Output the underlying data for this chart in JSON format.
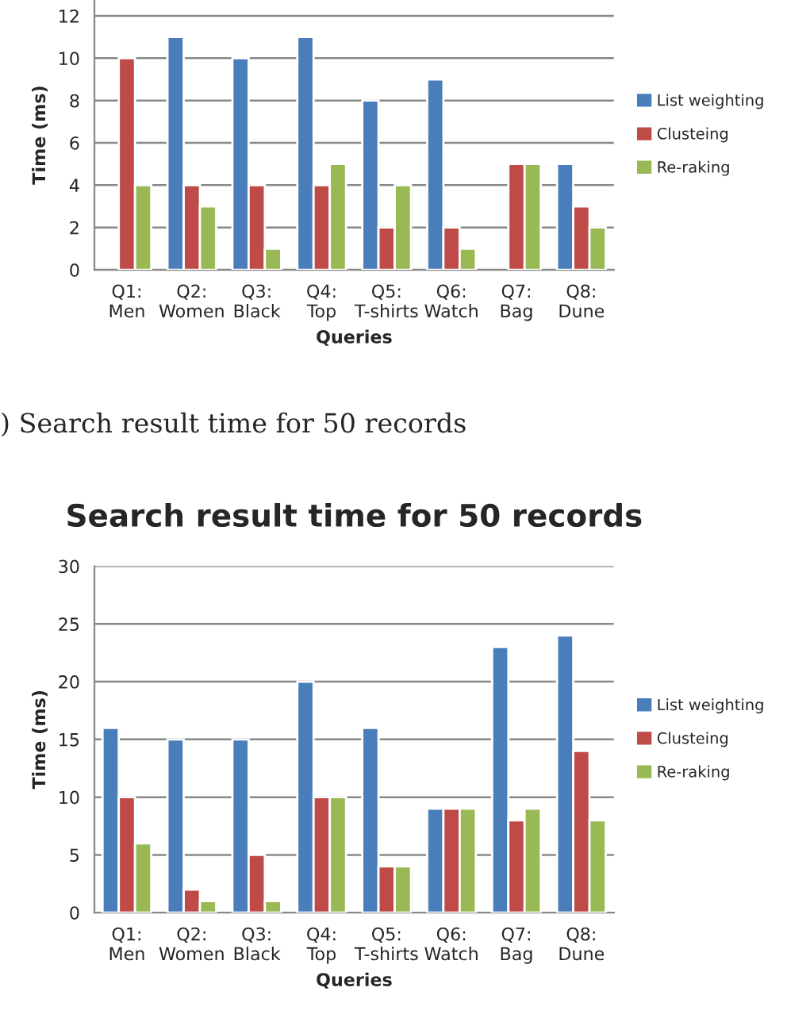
{
  "chart_data": [
    {
      "type": "bar",
      "xlabel": "Queries",
      "ylabel": "Time (ms)",
      "categories": [
        "Q1:\nMen",
        "Q2:\nWomen",
        "Q3:\nBlack",
        "Q4:\nTop",
        "Q5:\nT-shirts",
        "Q6:\nWatch",
        "Q7:\nBag",
        "Q8:\nDune"
      ],
      "series": [
        {
          "name": "List weighting",
          "color": "#4a7ebb",
          "values": [
            null,
            11,
            10,
            11,
            8,
            9,
            null,
            5
          ]
        },
        {
          "name": "Clusteing",
          "color": "#be4b48",
          "values": [
            10,
            4,
            4,
            4,
            2,
            2,
            5,
            3
          ]
        },
        {
          "name": "Re-raking",
          "color": "#98b954",
          "values": [
            4,
            3,
            1,
            5,
            4,
            1,
            5,
            2
          ]
        }
      ],
      "ylim": [
        0,
        12.75
      ],
      "yticks": [
        0,
        2,
        4,
        6,
        8,
        10,
        12
      ],
      "grid": "y",
      "legend": "right",
      "annotations": [
        ") Search result time for 50 records"
      ]
    },
    {
      "type": "bar",
      "title": "Search result time for 50 records",
      "xlabel": "Queries",
      "ylabel": "Time (ms)",
      "categories": [
        "Q1:\nMen",
        "Q2:\nWomen",
        "Q3:\nBlack",
        "Q4:\nTop",
        "Q5:\nT-shirts",
        "Q6:\nWatch",
        "Q7:\nBag",
        "Q8:\nDune"
      ],
      "series": [
        {
          "name": "List weighting",
          "color": "#4a7ebb",
          "values": [
            16,
            15,
            15,
            20,
            16,
            9,
            23,
            24
          ]
        },
        {
          "name": "Clusteing",
          "color": "#be4b48",
          "values": [
            10,
            2,
            5,
            10,
            4,
            9,
            8,
            14
          ]
        },
        {
          "name": "Re-raking",
          "color": "#98b954",
          "values": [
            6,
            1,
            1,
            10,
            4,
            9,
            9,
            8
          ]
        }
      ],
      "ylim": [
        0,
        30
      ],
      "yticks": [
        0,
        5,
        10,
        15,
        20,
        25,
        30
      ],
      "grid": "y",
      "legend": "right"
    }
  ]
}
